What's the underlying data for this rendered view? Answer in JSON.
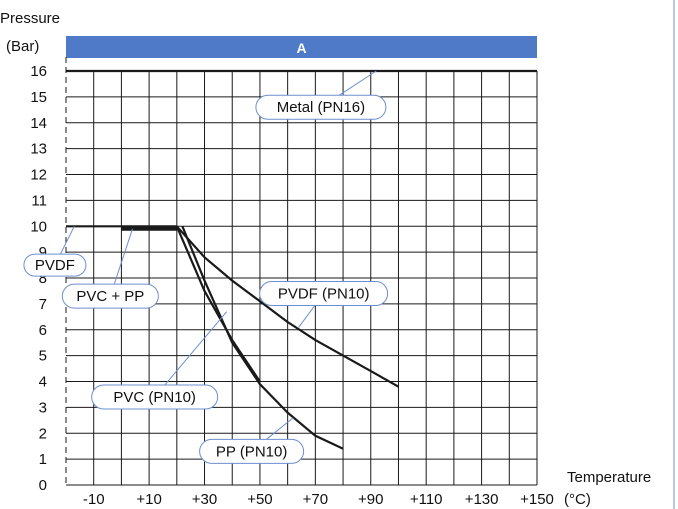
{
  "colors": {
    "band": "#4f7ac8",
    "band_text": "#ffffff",
    "grid": "#1a1a1a",
    "curve": "#1a1a1a",
    "callout_stroke": "#6d8fcf",
    "callout_fill": "#ffffff",
    "text": "#111111",
    "right_rule": "#b9c8e4"
  },
  "chart_data": {
    "type": "line",
    "title": "",
    "ylabel_line1": "Pressure",
    "ylabel_line2": "(Bar)",
    "xlabel_line1": "Temperature",
    "xlabel_line2": "(°C)",
    "band_label": "A",
    "band_range": [
      -20,
      150
    ],
    "xlim": [
      -20,
      150
    ],
    "ylim": [
      0,
      16
    ],
    "x_ticks": [
      -10,
      10,
      30,
      50,
      70,
      90,
      110,
      130,
      150
    ],
    "x_tick_labels": [
      "-10",
      "+10",
      "+30",
      "+50",
      "+70",
      "+90",
      "+110",
      "+130",
      "+150"
    ],
    "y_ticks": [
      0,
      1,
      2,
      3,
      4,
      5,
      6,
      7,
      8,
      9,
      10,
      11,
      12,
      13,
      14,
      15,
      16
    ],
    "grid": true,
    "dashed_x": -20,
    "series": [
      {
        "name": "Metal (PN16)",
        "x": [
          -20,
          150
        ],
        "y": [
          16,
          16
        ],
        "width": 2.2
      },
      {
        "name": "PVDF",
        "x": [
          -20,
          20
        ],
        "y": [
          10,
          10
        ],
        "width": 2.2
      },
      {
        "name": "PVC + PP",
        "x": [
          0,
          20
        ],
        "y": [
          9.9,
          9.9
        ],
        "width": 4
      },
      {
        "name": "PVDF (PN10)",
        "x": [
          20,
          30,
          40,
          50,
          60,
          70,
          80,
          90,
          100
        ],
        "y": [
          10,
          8.8,
          7.9,
          7.1,
          6.3,
          5.6,
          5.0,
          4.4,
          3.8
        ],
        "width": 2.2
      },
      {
        "name": "PVC (PN10)",
        "x": [
          20,
          30,
          40,
          50
        ],
        "y": [
          10,
          7.5,
          5.6,
          4.0
        ],
        "width": 2.2
      },
      {
        "name": "PP (PN10)",
        "x": [
          22,
          30,
          40,
          50,
          60,
          70,
          80
        ],
        "y": [
          10,
          7.9,
          5.5,
          3.9,
          2.8,
          1.9,
          1.4
        ],
        "width": 2.2
      }
    ],
    "callouts": [
      {
        "text": "Metal (PN16)",
        "anchor": [
          92,
          16
        ],
        "label": [
          72,
          14.6
        ],
        "w": 130,
        "h": 24
      },
      {
        "text": "PVDF",
        "anchor": [
          -17,
          10
        ],
        "label": [
          -24,
          8.5
        ],
        "w": 62,
        "h": 22
      },
      {
        "text": "PVC + PP",
        "anchor": [
          4,
          9.9
        ],
        "label": [
          -4,
          7.3
        ],
        "w": 96,
        "h": 24
      },
      {
        "text": "PVDF (PN10)",
        "anchor": [
          64,
          6.1
        ],
        "label": [
          73,
          7.4
        ],
        "w": 128,
        "h": 24
      },
      {
        "text": "PVC (PN10)",
        "anchor": [
          38,
          6.7
        ],
        "label": [
          12,
          3.4
        ],
        "w": 126,
        "h": 24
      },
      {
        "text": "PP (PN10)",
        "anchor": [
          62,
          2.6
        ],
        "label": [
          47,
          1.3
        ],
        "w": 104,
        "h": 24
      }
    ]
  }
}
